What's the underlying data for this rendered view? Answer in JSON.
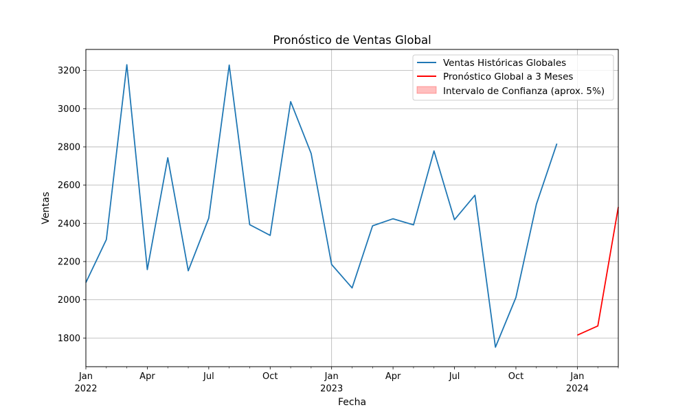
{
  "chart_data": {
    "type": "line",
    "title": "Pronóstico de Ventas Global",
    "xlabel": "Fecha",
    "ylabel": "Ventas",
    "xlim": [
      "2022-01",
      "2024-03"
    ],
    "ylim": [
      1650,
      3310
    ],
    "yticks": [
      1800,
      2000,
      2200,
      2400,
      2600,
      2800,
      3000,
      3200
    ],
    "xticks": [
      {
        "date": "2022-01",
        "label": "Jan",
        "year": "2022"
      },
      {
        "date": "2022-04",
        "label": "Apr",
        "year": ""
      },
      {
        "date": "2022-07",
        "label": "Jul",
        "year": ""
      },
      {
        "date": "2022-10",
        "label": "Oct",
        "year": ""
      },
      {
        "date": "2023-01",
        "label": "Jan",
        "year": "2023"
      },
      {
        "date": "2023-04",
        "label": "Apr",
        "year": ""
      },
      {
        "date": "2023-07",
        "label": "Jul",
        "year": ""
      },
      {
        "date": "2023-10",
        "label": "Oct",
        "year": ""
      },
      {
        "date": "2024-01",
        "label": "Jan",
        "year": "2024"
      }
    ],
    "grid": true,
    "grid_lines_at": [
      "2023-01",
      "2024-01"
    ],
    "legend_position": "top-right",
    "series": [
      {
        "name": "Ventas Históricas Globales",
        "color": "#1f77b4",
        "x": [
          "2022-01",
          "2022-02",
          "2022-03",
          "2022-04",
          "2022-05",
          "2022-06",
          "2022-07",
          "2022-08",
          "2022-09",
          "2022-10",
          "2022-11",
          "2022-12",
          "2023-01",
          "2023-02",
          "2023-03",
          "2023-04",
          "2023-05",
          "2023-06",
          "2023-07",
          "2023-08",
          "2023-09",
          "2023-10",
          "2023-11",
          "2023-12"
        ],
        "values": [
          2090,
          2315,
          3230,
          2158,
          2743,
          2152,
          2427,
          3228,
          2393,
          2337,
          3037,
          2766,
          2185,
          2062,
          2387,
          2424,
          2392,
          2779,
          2419,
          2547,
          1752,
          2012,
          2500,
          2817
        ]
      },
      {
        "name": "Pronóstico Global a 3 Meses",
        "color": "#ff0000",
        "x": [
          "2024-01",
          "2024-02",
          "2024-03"
        ],
        "values": [
          1815,
          1863,
          2485
        ]
      }
    ],
    "bands": [
      {
        "name": "Intervalo de Confianza (aprox. 5%)",
        "color": "#ff0000",
        "opacity": 0.25,
        "x": [],
        "lower": [],
        "upper": []
      }
    ]
  }
}
